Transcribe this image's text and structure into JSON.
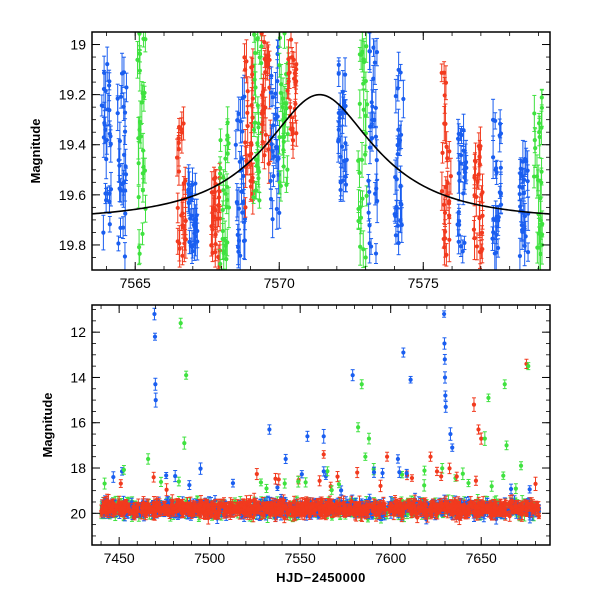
{
  "colors": {
    "blue": "#1a5ef0",
    "red": "#f23a1e",
    "green": "#3fe23f",
    "model": "#000000"
  },
  "chart_data": [
    {
      "type": "scatter",
      "title": "",
      "xlabel": "",
      "ylabel": "Magnitude",
      "xlim": [
        7563.5,
        7579.4
      ],
      "ylim": [
        19.9,
        18.95
      ],
      "y_inverted": true,
      "xticks": [
        7565,
        7570,
        7575
      ],
      "xtick_labels": [
        "7565",
        "7570",
        "7575"
      ],
      "yticks": [
        19.0,
        19.2,
        19.4,
        19.6,
        19.8
      ],
      "ytick_labels": [
        "19",
        "19.2",
        "19.4",
        "19.6",
        "19.8"
      ],
      "model_curve": {
        "name": "",
        "peak_x": 7571.4,
        "peak_mag": 19.2,
        "baseline_mag": 19.7,
        "u0": 0.5,
        "tE": 4.0
      },
      "observation_clusters": [
        {
          "x": 7564.0,
          "color": "blue",
          "y_range": [
            19.0,
            19.85
          ]
        },
        {
          "x": 7564.55,
          "color": "blue",
          "y_range": [
            19.0,
            19.85
          ]
        },
        {
          "x": 7565.2,
          "color": "green",
          "y_range": [
            18.95,
            19.85
          ]
        },
        {
          "x": 7566.6,
          "color": "red",
          "y_range": [
            19.3,
            19.9
          ]
        },
        {
          "x": 7567.0,
          "color": "blue",
          "y_range": [
            19.55,
            19.85
          ]
        },
        {
          "x": 7567.8,
          "color": "red",
          "y_range": [
            19.5,
            19.9
          ]
        },
        {
          "x": 7568.1,
          "color": "green",
          "y_range": [
            19.3,
            19.9
          ]
        },
        {
          "x": 7568.65,
          "color": "blue",
          "y_range": [
            19.2,
            19.85
          ]
        },
        {
          "x": 7568.95,
          "color": "red",
          "y_range": [
            19.05,
            19.7
          ]
        },
        {
          "x": 7569.25,
          "color": "green",
          "y_range": [
            18.95,
            19.7
          ]
        },
        {
          "x": 7569.55,
          "color": "red",
          "y_range": [
            18.95,
            19.5
          ]
        },
        {
          "x": 7569.85,
          "color": "blue",
          "y_range": [
            19.0,
            19.7
          ]
        },
        {
          "x": 7570.15,
          "color": "green",
          "y_range": [
            18.95,
            19.6
          ]
        },
        {
          "x": 7570.45,
          "color": "red",
          "y_range": [
            18.95,
            19.4
          ]
        },
        {
          "x": 7572.2,
          "color": "blue",
          "y_range": [
            19.05,
            19.6
          ]
        },
        {
          "x": 7572.9,
          "color": "green",
          "y_range": [
            19.0,
            19.9
          ]
        },
        {
          "x": 7573.25,
          "color": "blue",
          "y_range": [
            19.0,
            19.85
          ]
        },
        {
          "x": 7574.15,
          "color": "blue",
          "y_range": [
            19.1,
            19.8
          ]
        },
        {
          "x": 7575.8,
          "color": "red",
          "y_range": [
            19.1,
            19.85
          ]
        },
        {
          "x": 7576.35,
          "color": "blue",
          "y_range": [
            19.3,
            19.85
          ]
        },
        {
          "x": 7576.9,
          "color": "red",
          "y_range": [
            19.4,
            19.85
          ]
        },
        {
          "x": 7577.55,
          "color": "blue",
          "y_range": [
            19.3,
            19.85
          ]
        },
        {
          "x": 7578.5,
          "color": "blue",
          "y_range": [
            19.45,
            19.85
          ]
        },
        {
          "x": 7579.0,
          "color": "green",
          "y_range": [
            19.2,
            19.85
          ]
        }
      ]
    },
    {
      "type": "scatter",
      "title": "",
      "xlabel": "HJD−2450000",
      "ylabel": "Magnitude",
      "xlim": [
        7435,
        7688
      ],
      "ylim": [
        21.4,
        10.8
      ],
      "y_inverted": true,
      "xticks": [
        7450,
        7500,
        7550,
        7600,
        7650
      ],
      "xtick_labels": [
        "7450",
        "7500",
        "7550",
        "7600",
        "7650"
      ],
      "yticks": [
        12,
        14,
        16,
        18,
        20
      ],
      "ytick_labels": [
        "12",
        "14",
        "16",
        "18",
        "20"
      ],
      "baseline": {
        "x_range": [
          7440,
          7682
        ],
        "mag": 19.8,
        "spread": 0.55
      },
      "outliers": [
        {
          "x": 7469.5,
          "y": 11.2,
          "color": "blue"
        },
        {
          "x": 7469.8,
          "y": 12.2,
          "color": "blue"
        },
        {
          "x": 7470.0,
          "y": 14.3,
          "color": "blue"
        },
        {
          "x": 7470.2,
          "y": 15.0,
          "color": "blue"
        },
        {
          "x": 7484.0,
          "y": 11.6,
          "color": "green"
        },
        {
          "x": 7487.0,
          "y": 13.9,
          "color": "green"
        },
        {
          "x": 7486.0,
          "y": 16.9,
          "color": "green"
        },
        {
          "x": 7466.0,
          "y": 17.6,
          "color": "green"
        },
        {
          "x": 7533.0,
          "y": 16.3,
          "color": "blue"
        },
        {
          "x": 7554.0,
          "y": 16.6,
          "color": "blue"
        },
        {
          "x": 7563.0,
          "y": 16.6,
          "color": "blue"
        },
        {
          "x": 7579.0,
          "y": 13.9,
          "color": "blue"
        },
        {
          "x": 7582.0,
          "y": 16.2,
          "color": "green"
        },
        {
          "x": 7584.0,
          "y": 14.3,
          "color": "green"
        },
        {
          "x": 7588.0,
          "y": 16.7,
          "color": "green"
        },
        {
          "x": 7607.0,
          "y": 12.9,
          "color": "blue"
        },
        {
          "x": 7611.0,
          "y": 14.1,
          "color": "blue"
        },
        {
          "x": 7629.5,
          "y": 11.2,
          "color": "blue"
        },
        {
          "x": 7629.7,
          "y": 12.5,
          "color": "blue"
        },
        {
          "x": 7629.9,
          "y": 13.2,
          "color": "blue"
        },
        {
          "x": 7630.0,
          "y": 14.0,
          "color": "blue"
        },
        {
          "x": 7630.2,
          "y": 14.8,
          "color": "blue"
        },
        {
          "x": 7630.4,
          "y": 15.3,
          "color": "blue"
        },
        {
          "x": 7633.0,
          "y": 16.5,
          "color": "blue"
        },
        {
          "x": 7634.0,
          "y": 17.1,
          "color": "blue"
        },
        {
          "x": 7646.0,
          "y": 15.2,
          "color": "red"
        },
        {
          "x": 7648.5,
          "y": 16.3,
          "color": "red"
        },
        {
          "x": 7650.0,
          "y": 16.7,
          "color": "red"
        },
        {
          "x": 7652.0,
          "y": 16.7,
          "color": "green"
        },
        {
          "x": 7654.0,
          "y": 14.9,
          "color": "green"
        },
        {
          "x": 7663.0,
          "y": 14.3,
          "color": "green"
        },
        {
          "x": 7664.0,
          "y": 17.0,
          "color": "green"
        },
        {
          "x": 7672.0,
          "y": 17.9,
          "color": "green"
        },
        {
          "x": 7675.0,
          "y": 13.4,
          "color": "red"
        },
        {
          "x": 7676.0,
          "y": 13.5,
          "color": "green"
        },
        {
          "x": 7680.0,
          "y": 18.7,
          "color": "red"
        },
        {
          "x": 7542.0,
          "y": 17.6,
          "color": "blue"
        },
        {
          "x": 7604.0,
          "y": 17.6,
          "color": "blue"
        },
        {
          "x": 7586.0,
          "y": 17.5,
          "color": "green"
        },
        {
          "x": 7598.0,
          "y": 17.5,
          "color": "red"
        },
        {
          "x": 7622.0,
          "y": 17.5,
          "color": "red"
        },
        {
          "x": 7563.0,
          "y": 17.4,
          "color": "red"
        }
      ]
    }
  ]
}
